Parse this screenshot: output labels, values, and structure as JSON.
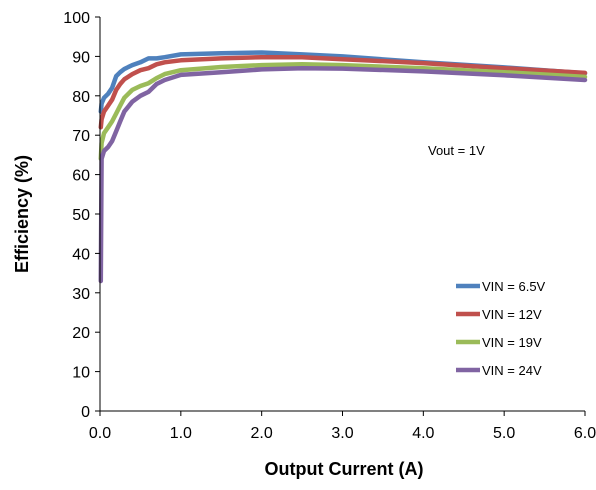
{
  "chart_data": {
    "type": "line",
    "xlabel": "Output Current (A)",
    "ylabel": "Efficiency (%)",
    "xlim": [
      0,
      6
    ],
    "ylim": [
      0,
      100
    ],
    "x_ticks": [
      "0.0",
      "1.0",
      "2.0",
      "3.0",
      "4.0",
      "5.0",
      "6.0"
    ],
    "y_ticks": [
      "0",
      "10",
      "20",
      "30",
      "40",
      "50",
      "60",
      "70",
      "80",
      "90",
      "100"
    ],
    "grid": false,
    "legend_position": "bottom-right",
    "annotation": "Vout = 1V",
    "series": [
      {
        "name": "VIN = 6.5V",
        "color": "#4F81BD",
        "x": [
          0.01,
          0.02,
          0.05,
          0.1,
          0.15,
          0.2,
          0.25,
          0.3,
          0.4,
          0.5,
          0.6,
          0.7,
          0.8,
          1.0,
          1.5,
          2.0,
          2.5,
          3.0,
          4.0,
          5.0,
          6.0
        ],
        "y": [
          76,
          78,
          79.5,
          80.5,
          82,
          85,
          86,
          86.8,
          87.8,
          88.5,
          89.5,
          89.5,
          89.8,
          90.5,
          90.8,
          91,
          90.5,
          90,
          88.5,
          87.2,
          85.7
        ]
      },
      {
        "name": "VIN = 12V",
        "color": "#C0504D",
        "x": [
          0.01,
          0.02,
          0.05,
          0.1,
          0.15,
          0.2,
          0.25,
          0.3,
          0.4,
          0.5,
          0.6,
          0.7,
          0.8,
          1.0,
          1.5,
          2.0,
          2.5,
          3.0,
          4.0,
          5.0,
          6.0
        ],
        "y": [
          72,
          74,
          76,
          77.5,
          79,
          81.5,
          83,
          84.2,
          85.5,
          86.5,
          87,
          88,
          88.5,
          89,
          89.5,
          89.8,
          89.8,
          89.3,
          88.3,
          87,
          85.8
        ]
      },
      {
        "name": "VIN = 19V",
        "color": "#9BBB59",
        "x": [
          0.01,
          0.02,
          0.05,
          0.1,
          0.15,
          0.2,
          0.25,
          0.3,
          0.4,
          0.5,
          0.6,
          0.7,
          0.8,
          1.0,
          1.5,
          2.0,
          2.5,
          3.0,
          4.0,
          5.0,
          6.0
        ],
        "y": [
          64,
          68,
          70.5,
          72,
          73.5,
          75.5,
          77.5,
          79.5,
          81.5,
          82.5,
          83.2,
          84.5,
          85.5,
          86.5,
          87.3,
          87.8,
          88,
          87.8,
          87,
          86,
          84.8
        ]
      },
      {
        "name": "VIN = 24V",
        "color": "#8064A2",
        "x": [
          0.01,
          0.02,
          0.05,
          0.1,
          0.15,
          0.2,
          0.25,
          0.3,
          0.4,
          0.5,
          0.6,
          0.7,
          0.8,
          1.0,
          1.5,
          2.0,
          2.5,
          3.0,
          4.0,
          5.0,
          6.0
        ],
        "y": [
          33,
          64,
          66,
          67,
          68.5,
          71,
          73.5,
          76,
          78.5,
          80,
          81,
          83,
          84,
          85.3,
          86,
          86.7,
          87,
          86.9,
          86.2,
          85.2,
          84
        ]
      }
    ]
  }
}
